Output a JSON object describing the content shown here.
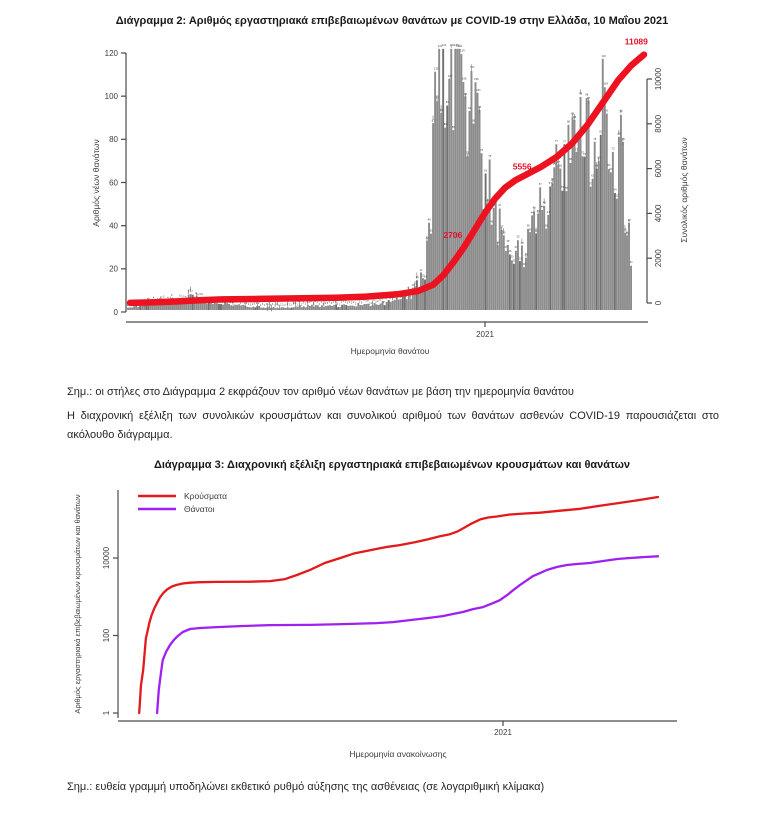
{
  "page": {
    "chart2_title": "Διάγραμμα 2: Αριθμός εργαστηριακά επιβεβαιωμένων θανάτων με COVID-19 στην Ελλάδα, 10 Μαΐου 2021",
    "note_chart2": "Σημ.: οι στήλες στο Διάγραμμα 2 εκφράζουν τον αριθμό νέων θανάτων με βάση την ημερομηνία θανάτου",
    "paragraph": "Η διαχρονική εξέλιξη των συνολικών κρουσμάτων και συνολικού αριθμού των θανάτων ασθενών COVID-19 παρουσιάζεται στο ακόλουθο διάγραμμα.",
    "chart3_title": "Διάγραμμα 3: Διαχρονική εξέλιξη εργαστηριακά επιβεβαιωμένων κρουσμάτων και θανάτων",
    "note_chart3": "Σημ.: ευθεία γραμμή υποδηλώνει εκθετικό ρυθμό αύξησης της ασθένειας (σε λογαριθμική κλίμακα)"
  },
  "colors": {
    "bar_gray": "#8c8c8c",
    "bar_gray_dark": "#6f6f6f",
    "speck": "#3f3f3f",
    "axis": "#4a4a4a",
    "tick_text": "#3c3c3c",
    "red_line": "#ec1220",
    "annotation_red": "#e8112a",
    "cases_red": "#e31a1c",
    "deaths_purple": "#a020f0"
  },
  "chart_data": [
    {
      "id": "chart2",
      "type": "bar+line",
      "title": "Διάγραμμα 2: Αριθμός εργαστηριακά επιβεβαιωμένων θανάτων με COVID-19 στην Ελλάδα, 10 Μαΐου 2021",
      "xlabel": "Ημερομηνία θανάτου",
      "x_ticks": [
        "2021"
      ],
      "ylabel_left": "Αριθμός νέων θανάτων",
      "ylabel_right": "Συνολικός αριθμός θανάτων",
      "y_left": {
        "lim": [
          0,
          120
        ],
        "ticks": [
          0,
          20,
          40,
          60,
          80,
          100,
          120
        ]
      },
      "y_right": {
        "lim": [
          0,
          10000
        ],
        "ticks": [
          0,
          2000,
          4000,
          6000,
          8000,
          10000
        ]
      },
      "bars": {
        "name": "new deaths per day",
        "anchors": [
          [
            0,
            1
          ],
          [
            0.02,
            2
          ],
          [
            0.05,
            3
          ],
          [
            0.08,
            4
          ],
          [
            0.1,
            5
          ],
          [
            0.12,
            6
          ],
          [
            0.14,
            5
          ],
          [
            0.16,
            4
          ],
          [
            0.18,
            3
          ],
          [
            0.22,
            2
          ],
          [
            0.26,
            1.5
          ],
          [
            0.3,
            1
          ],
          [
            0.34,
            1.5
          ],
          [
            0.38,
            2
          ],
          [
            0.42,
            2
          ],
          [
            0.46,
            2.5
          ],
          [
            0.5,
            3
          ],
          [
            0.53,
            4
          ],
          [
            0.56,
            7
          ],
          [
            0.58,
            12
          ],
          [
            0.595,
            25
          ],
          [
            0.605,
            60
          ],
          [
            0.612,
            115
          ],
          [
            0.62,
            92
          ],
          [
            0.63,
            100
          ],
          [
            0.64,
            112
          ],
          [
            0.648,
            118
          ],
          [
            0.658,
            110
          ],
          [
            0.668,
            100
          ],
          [
            0.678,
            94
          ],
          [
            0.688,
            86
          ],
          [
            0.7,
            72
          ],
          [
            0.715,
            58
          ],
          [
            0.73,
            45
          ],
          [
            0.745,
            35
          ],
          [
            0.76,
            28
          ],
          [
            0.775,
            24
          ],
          [
            0.79,
            27
          ],
          [
            0.805,
            34
          ],
          [
            0.82,
            44
          ],
          [
            0.835,
            54
          ],
          [
            0.85,
            62
          ],
          [
            0.865,
            68
          ],
          [
            0.88,
            74
          ],
          [
            0.895,
            79
          ],
          [
            0.91,
            82
          ],
          [
            0.925,
            85
          ],
          [
            0.94,
            87
          ],
          [
            0.955,
            84
          ],
          [
            0.97,
            79
          ],
          [
            0.98,
            68
          ],
          [
            0.99,
            45
          ],
          [
            1,
            20
          ]
        ]
      },
      "line": {
        "name": "cumulative deaths",
        "points": [
          [
            0,
            5
          ],
          [
            0.05,
            30
          ],
          [
            0.1,
            80
          ],
          [
            0.14,
            130
          ],
          [
            0.18,
            160
          ],
          [
            0.25,
            185
          ],
          [
            0.32,
            205
          ],
          [
            0.4,
            235
          ],
          [
            0.46,
            285
          ],
          [
            0.52,
            390
          ],
          [
            0.56,
            530
          ],
          [
            0.59,
            820
          ],
          [
            0.61,
            1250
          ],
          [
            0.63,
            1850
          ],
          [
            0.65,
            2500
          ],
          [
            0.67,
            3250
          ],
          [
            0.69,
            4000
          ],
          [
            0.71,
            4650
          ],
          [
            0.73,
            5150
          ],
          [
            0.75,
            5480
          ],
          [
            0.77,
            5720
          ],
          [
            0.8,
            6080
          ],
          [
            0.83,
            6520
          ],
          [
            0.86,
            7120
          ],
          [
            0.89,
            7950
          ],
          [
            0.92,
            8950
          ],
          [
            0.95,
            9950
          ],
          [
            0.975,
            10600
          ],
          [
            1,
            11089
          ]
        ]
      },
      "annotations": [
        {
          "label": "2706",
          "fx": 0.628,
          "value": 2900
        },
        {
          "label": "5556",
          "fx": 0.763,
          "value": 5950
        },
        {
          "label": "11089",
          "fx": 0.985,
          "value": 11550
        }
      ]
    },
    {
      "id": "chart3",
      "type": "line",
      "log_y": true,
      "title": "Διάγραμμα 3: Διαχρονική εξέλιξη εργαστηριακά επιβεβαιωμένων κρουσμάτων και θανάτων",
      "xlabel": "Ημερομηνία ανακοίνωσης",
      "x_ticks": [
        "2021"
      ],
      "ylabel": "Αριθμός εργαστηριακά επιβεβαιωμένων κρουσμάτων και θανάτων",
      "y_ticks": [
        1,
        100,
        10000
      ],
      "legend": [
        {
          "label": "Κρούσματα",
          "color": "#e31a1c"
        },
        {
          "label": "Θάνατοι",
          "color": "#a020f0"
        }
      ],
      "series": [
        {
          "name": "Κρούσματα",
          "color": "#e31a1c",
          "points": [
            [
              0.038,
              1
            ],
            [
              0.04,
              3
            ],
            [
              0.041,
              5
            ],
            [
              0.045,
              13
            ],
            [
              0.048,
              40
            ],
            [
              0.05,
              85
            ],
            [
              0.052,
              115
            ],
            [
              0.056,
              210
            ],
            [
              0.06,
              330
            ],
            [
              0.065,
              500
            ],
            [
              0.07,
              700
            ],
            [
              0.075,
              950
            ],
            [
              0.081,
              1250
            ],
            [
              0.088,
              1550
            ],
            [
              0.097,
              1850
            ],
            [
              0.106,
              2050
            ],
            [
              0.116,
              2200
            ],
            [
              0.129,
              2300
            ],
            [
              0.147,
              2380
            ],
            [
              0.177,
              2420
            ],
            [
              0.236,
              2450
            ],
            [
              0.272,
              2530
            ],
            [
              0.299,
              2850
            ],
            [
              0.32,
              3650
            ],
            [
              0.344,
              4950
            ],
            [
              0.37,
              7450
            ],
            [
              0.397,
              9950
            ],
            [
              0.424,
              13300
            ],
            [
              0.451,
              15900
            ],
            [
              0.478,
              19000
            ],
            [
              0.504,
              21500
            ],
            [
              0.531,
              25600
            ],
            [
              0.555,
              30600
            ],
            [
              0.576,
              36600
            ],
            [
              0.594,
              41200
            ],
            [
              0.608,
              49000
            ],
            [
              0.621,
              62000
            ],
            [
              0.633,
              78000
            ],
            [
              0.648,
              99000
            ],
            [
              0.662,
              111000
            ],
            [
              0.678,
              118000
            ],
            [
              0.701,
              133000
            ],
            [
              0.728,
              141000
            ],
            [
              0.755,
              148000
            ],
            [
              0.791,
              166000
            ],
            [
              0.827,
              186000
            ],
            [
              0.862,
              222000
            ],
            [
              0.898,
              264000
            ],
            [
              0.934,
              315000
            ],
            [
              0.966,
              376000
            ]
          ]
        },
        {
          "name": "Θάνατοι",
          "color": "#a020f0",
          "points": [
            [
              0.07,
              1
            ],
            [
              0.073,
              4
            ],
            [
              0.077,
              11
            ],
            [
              0.08,
              23
            ],
            [
              0.086,
              38
            ],
            [
              0.093,
              57
            ],
            [
              0.1,
              77
            ],
            [
              0.107,
              97
            ],
            [
              0.116,
              123
            ],
            [
              0.129,
              147
            ],
            [
              0.147,
              156
            ],
            [
              0.177,
              165
            ],
            [
              0.218,
              175
            ],
            [
              0.272,
              186
            ],
            [
              0.344,
              188
            ],
            [
              0.403,
              197
            ],
            [
              0.463,
              209
            ],
            [
              0.492,
              222
            ],
            [
              0.522,
              250
            ],
            [
              0.553,
              281
            ],
            [
              0.581,
              317
            ],
            [
              0.599,
              358
            ],
            [
              0.617,
              403
            ],
            [
              0.635,
              481
            ],
            [
              0.653,
              540
            ],
            [
              0.671,
              686
            ],
            [
              0.683,
              816
            ],
            [
              0.696,
              1100
            ],
            [
              0.707,
              1480
            ],
            [
              0.719,
              2000
            ],
            [
              0.732,
              2690
            ],
            [
              0.742,
              3400
            ],
            [
              0.755,
              4080
            ],
            [
              0.767,
              4890
            ],
            [
              0.785,
              5850
            ],
            [
              0.803,
              6600
            ],
            [
              0.821,
              7000
            ],
            [
              0.844,
              7440
            ],
            [
              0.868,
              8370
            ],
            [
              0.893,
              9420
            ],
            [
              0.916,
              9980
            ],
            [
              0.943,
              10600
            ],
            [
              0.966,
              11089
            ]
          ]
        }
      ]
    }
  ]
}
